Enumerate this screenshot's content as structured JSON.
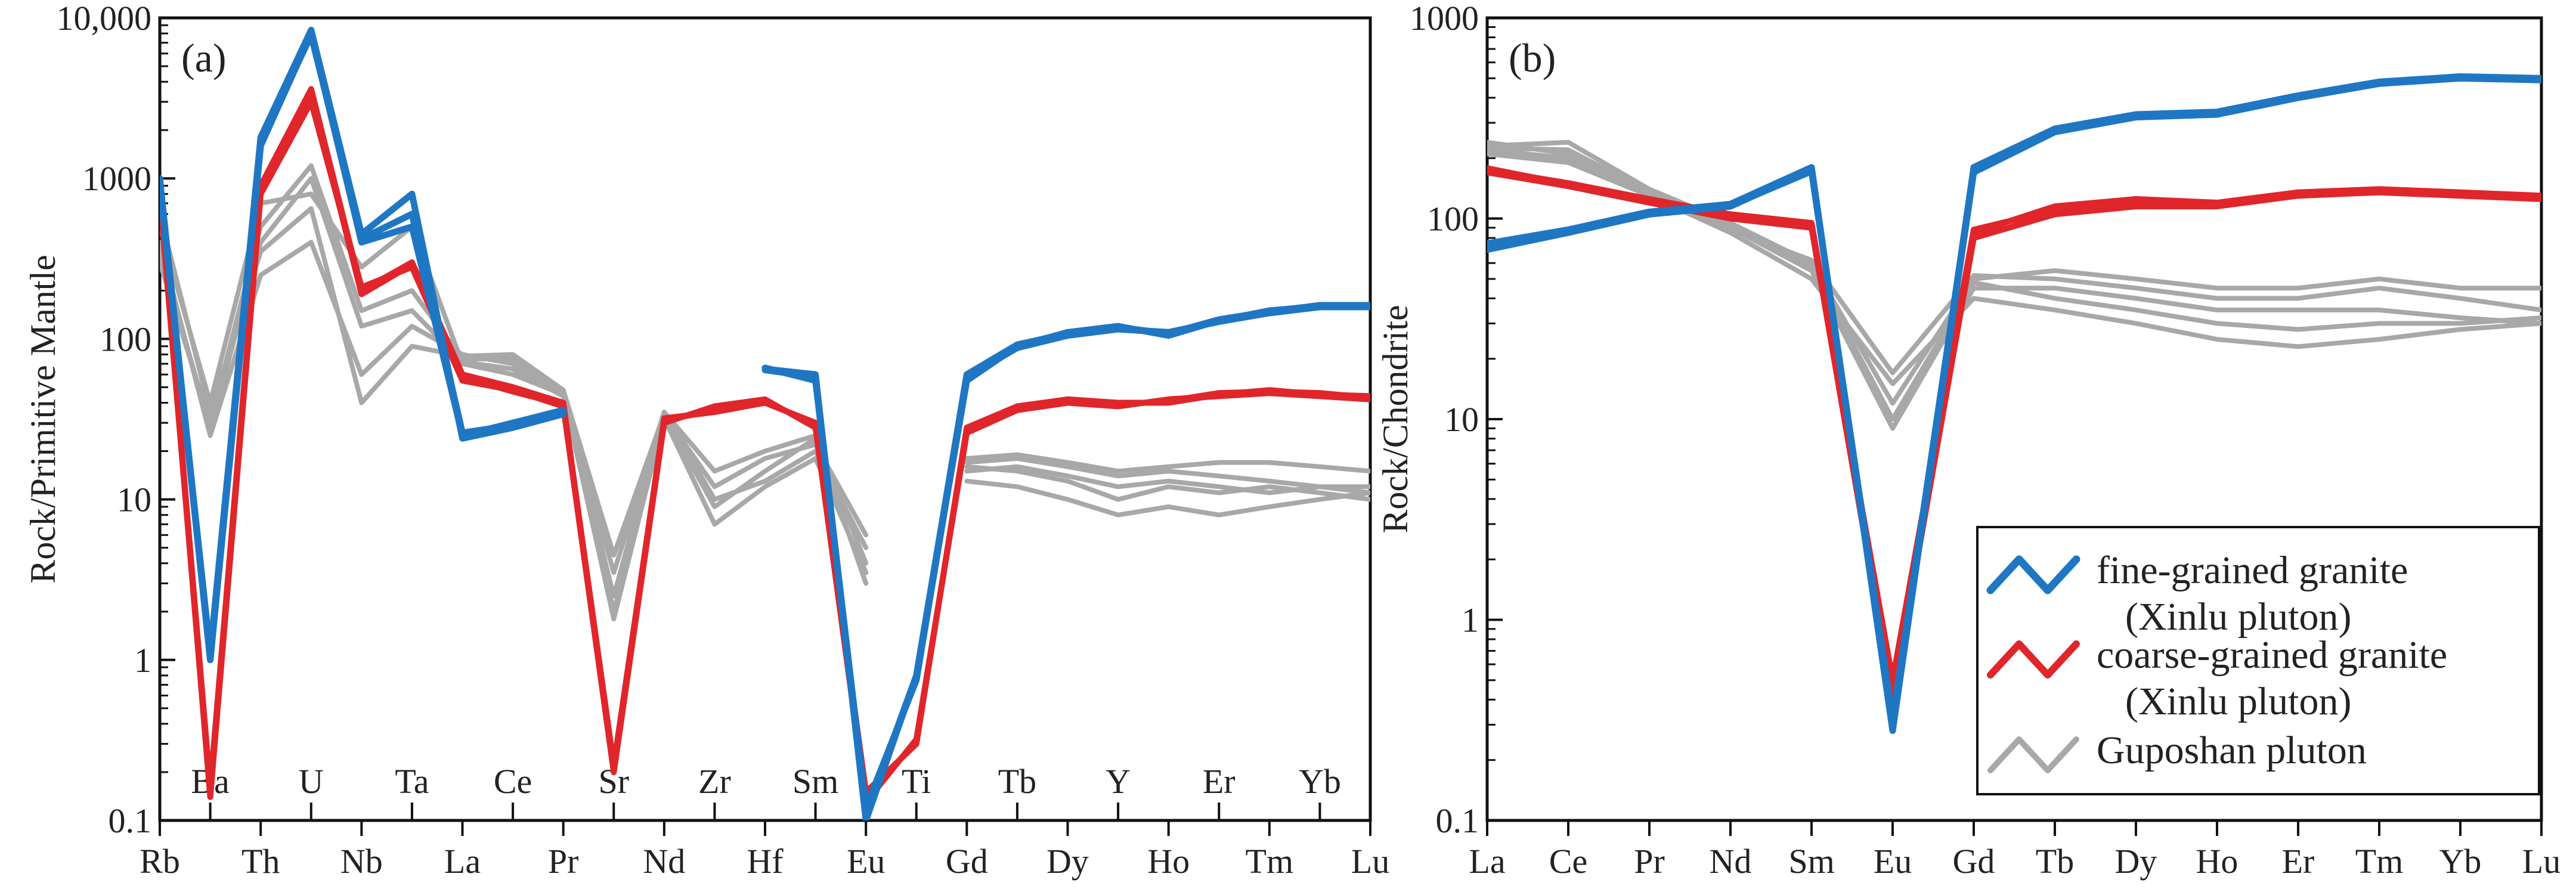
{
  "colors": {
    "fine": "#1f77c4",
    "coarse": "#e0262b",
    "guposhan": "#a8a8a8",
    "axis": "#111111"
  },
  "legend": {
    "items": [
      {
        "key": "fine",
        "line1": "fine-grained granite",
        "line2": "(Xinlu  pluton)"
      },
      {
        "key": "coarse",
        "line1": "coarse-grained granite",
        "line2": "(Xinlu  pluton)"
      },
      {
        "key": "guposhan",
        "line1": "Guposhan  pluton",
        "line2": ""
      }
    ]
  },
  "chart_data": [
    {
      "panel_label": "(a)",
      "type": "line",
      "ylabel": "Rock/Primitive Mantle",
      "y_scale": "log",
      "ylim": [
        0.1,
        10000
      ],
      "y_ticks": [
        {
          "value": 0.1,
          "label": "0.1"
        },
        {
          "value": 1,
          "label": "1"
        },
        {
          "value": 10,
          "label": "10"
        },
        {
          "value": 100,
          "label": "100"
        },
        {
          "value": 1000,
          "label": "1000"
        },
        {
          "value": 10000,
          "label": "10,000"
        }
      ],
      "categories": [
        "Rb",
        "Ba",
        "Th",
        "U",
        "Nb",
        "Ta",
        "La",
        "Ce",
        "Pr",
        "Sr",
        "Nd",
        "Zr",
        "Hf",
        "Sm",
        "Eu",
        "Ti",
        "Gd",
        "Tb",
        "Dy",
        "Y",
        "Ho",
        "Er",
        "Tm",
        "Yb",
        "Lu"
      ],
      "series": [
        {
          "group": "fine",
          "values": [
            1000,
            1.0,
            1600,
            8000,
            400,
            500,
            25,
            30,
            36,
            null,
            37,
            null,
            65,
            60,
            0.1,
            0.8,
            55,
            90,
            110,
            120,
            105,
            130,
            150,
            160,
            160
          ]
        },
        {
          "group": "fine",
          "values": [
            900,
            1.1,
            1800,
            8400,
            450,
            800,
            24,
            28,
            34,
            null,
            36,
            null,
            66,
            55,
            0.12,
            0.75,
            58,
            88,
            105,
            115,
            110,
            128,
            145,
            158,
            158
          ]
        },
        {
          "group": "fine",
          "values": [
            950,
            1.0,
            1700,
            7800,
            420,
            600,
            26,
            29,
            35,
            null,
            38,
            null,
            64,
            58,
            0.11,
            0.8,
            60,
            92,
            108,
            118,
            108,
            132,
            148,
            162,
            162
          ]
        },
        {
          "group": "coarse",
          "values": [
            800,
            0.15,
            900,
            3600,
            200,
            300,
            60,
            50,
            40,
            0.2,
            32,
            35,
            40,
            30,
            0.15,
            0.3,
            28,
            38,
            42,
            40,
            40,
            45,
            48,
            45,
            44
          ]
        },
        {
          "group": "coarse",
          "values": [
            900,
            0.14,
            800,
            3000,
            210,
            280,
            55,
            48,
            38,
            0.2,
            30,
            38,
            42,
            28,
            0.13,
            0.32,
            26,
            36,
            40,
            38,
            42,
            44,
            46,
            44,
            42
          ]
        },
        {
          "group": "coarse",
          "values": [
            850,
            0.16,
            850,
            3400,
            190,
            290,
            58,
            47,
            39,
            0.22,
            31,
            36,
            41,
            29,
            0.14,
            0.31,
            27,
            37,
            41,
            39,
            41,
            46,
            47,
            46,
            43
          ]
        },
        {
          "group": "guposhan",
          "values": [
            500,
            40,
            700,
            800,
            280,
            500,
            70,
            60,
            45,
            2.5,
            35,
            15,
            20,
            25,
            4,
            null,
            15,
            16,
            14,
            12,
            13,
            12,
            11,
            12,
            11
          ]
        },
        {
          "group": "guposhan",
          "values": [
            300,
            30,
            500,
            1200,
            150,
            200,
            75,
            75,
            45,
            3.5,
            35,
            10,
            13,
            20,
            5,
            null,
            17,
            18,
            16,
            14,
            15,
            14,
            13,
            12,
            12
          ]
        },
        {
          "group": "guposhan",
          "values": [
            400,
            25,
            250,
            400,
            60,
            120,
            80,
            70,
            46,
            1.8,
            32,
            7,
            12,
            18,
            3.5,
            null,
            13,
            12,
            10,
            8,
            9,
            8,
            9,
            10,
            11
          ]
        },
        {
          "group": "guposhan",
          "values": [
            600,
            35,
            350,
            650,
            40,
            90,
            78,
            80,
            48,
            4.5,
            34,
            12,
            18,
            22,
            6,
            null,
            18,
            19,
            17,
            15,
            16,
            17,
            17,
            16,
            15
          ]
        },
        {
          "group": "guposhan",
          "values": [
            350,
            28,
            400,
            1000,
            120,
            150,
            72,
            65,
            44,
            2,
            33,
            9,
            15,
            24,
            3,
            null,
            16,
            15,
            13,
            10,
            12,
            11,
            12,
            11,
            10
          ]
        }
      ]
    },
    {
      "panel_label": "(b)",
      "type": "line",
      "ylabel": "Rock/Chondrite",
      "y_scale": "log",
      "ylim": [
        0.1,
        1000
      ],
      "y_ticks": [
        {
          "value": 0.1,
          "label": "0.1"
        },
        {
          "value": 1,
          "label": "1"
        },
        {
          "value": 10,
          "label": "10"
        },
        {
          "value": 100,
          "label": "100"
        },
        {
          "value": 1000,
          "label": "1000"
        }
      ],
      "categories": [
        "La",
        "Ce",
        "Pr",
        "Nd",
        "Sm",
        "Eu",
        "Gd",
        "Tb",
        "Dy",
        "Ho",
        "Er",
        "Tm",
        "Yb",
        "Lu"
      ],
      "series": [
        {
          "group": "fine",
          "values": [
            70,
            85,
            105,
            115,
            175,
            0.3,
            170,
            270,
            320,
            330,
            400,
            470,
            500,
            490
          ]
        },
        {
          "group": "fine",
          "values": [
            75,
            88,
            108,
            118,
            180,
            0.28,
            180,
            280,
            330,
            340,
            410,
            480,
            510,
            500
          ]
        },
        {
          "group": "fine",
          "values": [
            72,
            86,
            106,
            116,
            172,
            0.32,
            175,
            275,
            325,
            335,
            405,
            475,
            505,
            495
          ]
        },
        {
          "group": "coarse",
          "values": [
            175,
            150,
            125,
            105,
            95,
            0.45,
            85,
            115,
            125,
            120,
            135,
            140,
            135,
            130
          ]
        },
        {
          "group": "coarse",
          "values": [
            170,
            145,
            120,
            100,
            90,
            0.4,
            80,
            105,
            115,
            115,
            130,
            135,
            130,
            125
          ]
        },
        {
          "group": "coarse",
          "values": [
            178,
            148,
            122,
            102,
            92,
            0.5,
            88,
            110,
            120,
            118,
            132,
            138,
            132,
            128
          ]
        },
        {
          "group": "guposhan",
          "values": [
            230,
            240,
            140,
            95,
            60,
            12,
            50,
            55,
            50,
            45,
            45,
            50,
            45,
            45
          ]
        },
        {
          "group": "guposhan",
          "values": [
            220,
            200,
            135,
            90,
            55,
            9,
            45,
            45,
            40,
            35,
            35,
            35,
            32,
            30
          ]
        },
        {
          "group": "guposhan",
          "values": [
            210,
            190,
            130,
            85,
            50,
            15,
            40,
            35,
            30,
            25,
            23,
            25,
            28,
            30
          ]
        },
        {
          "group": "guposhan",
          "values": [
            240,
            210,
            138,
            92,
            58,
            10,
            48,
            40,
            35,
            30,
            28,
            30,
            30,
            32
          ]
        },
        {
          "group": "guposhan",
          "values": [
            225,
            220,
            136,
            88,
            62,
            17,
            52,
            50,
            45,
            40,
            40,
            45,
            40,
            35
          ]
        }
      ]
    }
  ]
}
